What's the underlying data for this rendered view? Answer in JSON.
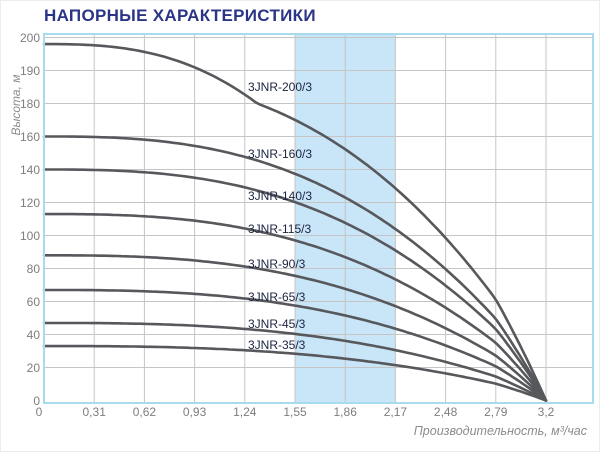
{
  "page": {
    "title": "НАПОРНЫЕ ХАРАКТЕРИСТИКИ"
  },
  "chart_data": {
    "type": "line",
    "title": "НАПОРНЫЕ ХАРАКТЕРИСТИКИ",
    "xlabel": "Производительность, м³/час",
    "ylabel": "Высота, м",
    "x_tick_labels": [
      "0",
      "0,31",
      "0,62",
      "0,93",
      "1,24",
      "1,55",
      "1,86",
      "2,17",
      "2,48",
      "2,79",
      "3,2"
    ],
    "x_tick_values": [
      0,
      0.31,
      0.62,
      0.93,
      1.24,
      1.55,
      1.86,
      2.17,
      2.48,
      2.79,
      3.2
    ],
    "y_tick_labels": [
      "200",
      "190",
      "180",
      "160",
      "140",
      "120",
      "100",
      "80",
      "60",
      "40",
      "20",
      "0"
    ],
    "y_tick_values": [
      200,
      190,
      180,
      160,
      140,
      120,
      100,
      80,
      60,
      40,
      20,
      0
    ],
    "x": [
      0,
      0.31,
      0.62,
      0.93,
      1.24,
      1.55,
      1.86,
      2.17,
      2.48,
      2.79,
      3.2
    ],
    "series": [
      {
        "name": "3JNR-200/3",
        "values": [
          198,
          197.6,
          195.6,
          190.9,
          182.7,
          170.0,
          152.2,
          128.6,
          98.5,
          61.3,
          0
        ]
      },
      {
        "name": "3JNR-160/3",
        "values": [
          160,
          159.7,
          158.1,
          154.3,
          147.6,
          137.4,
          123.0,
          103.9,
          79.6,
          49.5,
          0
        ]
      },
      {
        "name": "3JNR-140/3",
        "values": [
          140,
          139.7,
          138.3,
          135.0,
          129.2,
          120.2,
          107.6,
          90.9,
          69.7,
          43.3,
          0
        ]
      },
      {
        "name": "3JNR-115/3",
        "values": [
          113,
          112.8,
          111.7,
          109.0,
          104.3,
          97.0,
          86.9,
          73.4,
          56.2,
          35.0,
          0
        ]
      },
      {
        "name": "3JNR-90/3",
        "values": [
          88,
          87.8,
          87.0,
          84.9,
          81.2,
          75.6,
          67.7,
          57.2,
          43.8,
          27.2,
          0
        ]
      },
      {
        "name": "3JNR-65/3",
        "values": [
          67,
          66.9,
          66.2,
          64.6,
          61.8,
          57.5,
          51.5,
          43.5,
          33.3,
          20.7,
          0
        ]
      },
      {
        "name": "3JNR-45/3",
        "values": [
          47,
          46.9,
          46.4,
          45.3,
          43.4,
          40.4,
          36.1,
          30.5,
          23.4,
          14.5,
          0
        ]
      },
      {
        "name": "3JNR-35/3",
        "values": [
          33,
          32.9,
          32.6,
          31.8,
          30.5,
          28.3,
          25.4,
          21.4,
          16.4,
          10.2,
          0
        ]
      }
    ],
    "curve_model": {
      "type": "power",
      "exponent": 2.7,
      "x_end": 3.2
    },
    "highlight_band": {
      "x_from": 1.55,
      "x_to": 2.17
    },
    "axis_ranges": {
      "x": [
        0,
        3.2
      ],
      "y": [
        0,
        200
      ],
      "y_scale_note": "non-linear: 10 m per step above 180, 20 m per step below"
    },
    "grid": true,
    "legend_position": "labels-on-curves",
    "colors": {
      "title": "#2b3585",
      "curve": "#57585c",
      "curve_label": "#1c2540",
      "tick_label": "#7e7e7e",
      "axis_title": "#8c8c8c",
      "gridline": "#c5c5c5",
      "plot_border": "#a9dbee",
      "band_fill": "#c9e5f8",
      "background": "#ffffff"
    }
  }
}
